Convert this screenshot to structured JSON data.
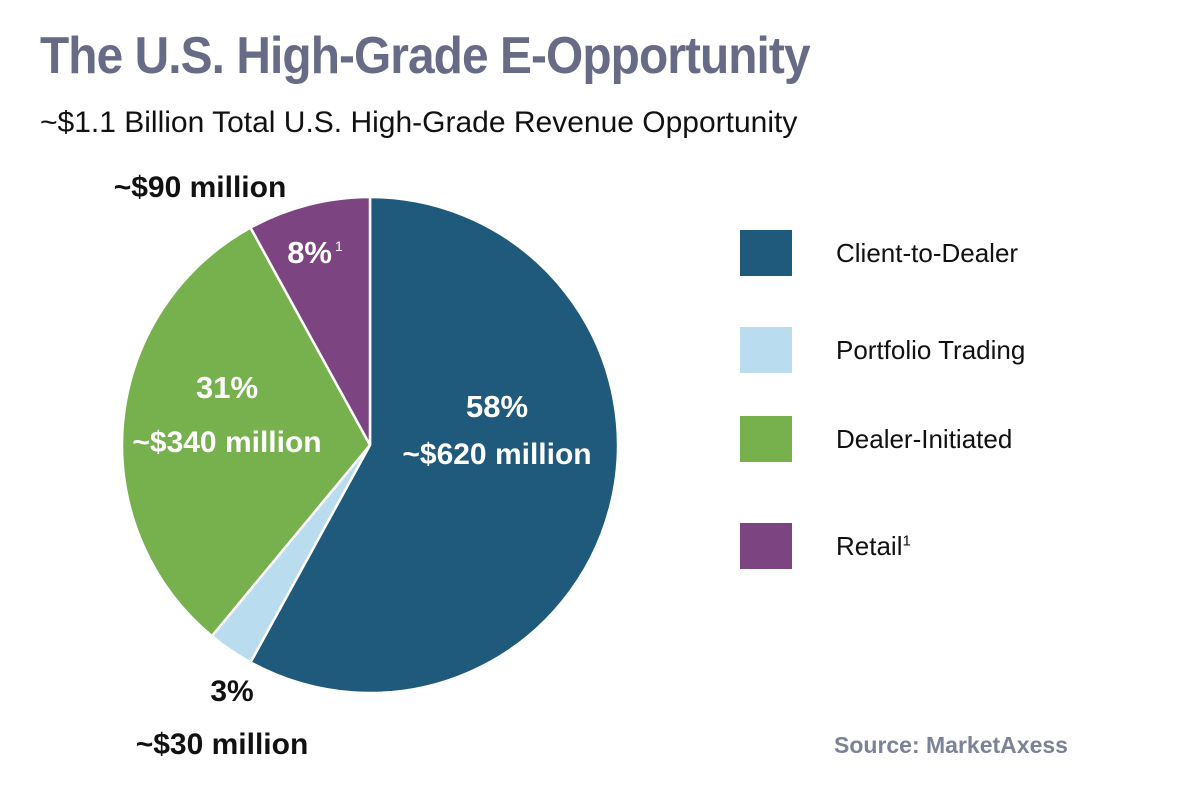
{
  "title": "The U.S. High-Grade E-Opportunity",
  "subtitle": "~$1.1 Billion Total U.S. High-Grade Revenue Opportunity",
  "source": "Source: MarketAxess",
  "chart_data": {
    "type": "pie",
    "title": "The U.S. High-Grade E-Opportunity",
    "subtitle": "~$1.1 Billion Total U.S. High-Grade Revenue Opportunity",
    "slices": [
      {
        "name": "Client-to-Dealer",
        "percent": 58,
        "percent_label": "58%",
        "value_label": "~$620 million",
        "value_millions": 620,
        "color": "#1f5a7d"
      },
      {
        "name": "Portfolio Trading",
        "percent": 3,
        "percent_label": "3%",
        "value_label": "~$30 million",
        "value_millions": 30,
        "color": "#b9dcee"
      },
      {
        "name": "Dealer-Initiated",
        "percent": 31,
        "percent_label": "31%",
        "value_label": "~$340 million",
        "value_millions": 340,
        "color": "#77b14d"
      },
      {
        "name": "Retail",
        "percent": 8,
        "percent_label": "8%",
        "percent_footnote": "1",
        "value_label": "~$90 million",
        "value_millions": 90,
        "color": "#7c4481",
        "footnote": "1"
      }
    ],
    "legend_position": "right"
  }
}
